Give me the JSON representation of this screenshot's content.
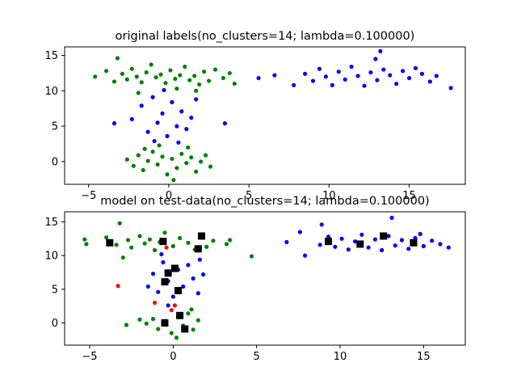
{
  "chart_data": [
    {
      "type": "scatter",
      "title": "original labels(no_clusters=14; lambda=0.100000)",
      "xlabel": "",
      "ylabel": "",
      "xlim": [
        -6.5,
        18.5
      ],
      "ylim": [
        -3.2,
        16.2
      ],
      "xticks": [
        -5,
        0,
        5,
        10,
        15
      ],
      "xtick_labels": [
        "−5",
        "0",
        "5",
        "10",
        "15"
      ],
      "yticks": [
        0,
        5,
        10,
        15
      ],
      "ytick_labels": [
        "0",
        "5",
        "10",
        "15"
      ],
      "grid": false,
      "legend": "none",
      "colors": {
        "green": "#008000",
        "blue": "#0000ff"
      },
      "series": [
        {
          "color": "green",
          "points": [
            [
              -4.6,
              12.0
            ],
            [
              -3.9,
              12.8
            ],
            [
              -3.4,
              11.3
            ],
            [
              -3.2,
              14.6
            ],
            [
              -2.9,
              12.4
            ],
            [
              -2.6,
              11.6
            ],
            [
              -2.3,
              13.1
            ],
            [
              -2.0,
              12.0
            ],
            [
              -1.7,
              11.2
            ],
            [
              -1.4,
              12.6
            ],
            [
              -1.1,
              13.7
            ],
            [
              -0.8,
              11.9
            ],
            [
              -0.5,
              12.3
            ],
            [
              -0.2,
              11.1
            ],
            [
              0.1,
              12.9
            ],
            [
              0.4,
              11.7
            ],
            [
              0.7,
              12.2
            ],
            [
              1.0,
              13.4
            ],
            [
              1.3,
              11.5
            ],
            [
              1.6,
              12.1
            ],
            [
              1.9,
              10.9
            ],
            [
              2.2,
              12.7
            ],
            [
              2.5,
              11.4
            ],
            [
              2.9,
              13.0
            ],
            [
              3.4,
              11.8
            ],
            [
              3.8,
              12.5
            ],
            [
              4.1,
              11.0
            ],
            [
              -1.9,
              9.7
            ],
            [
              0.5,
              10.3
            ],
            [
              1.7,
              10.0
            ],
            [
              -2.6,
              0.3
            ],
            [
              -2.2,
              -0.6
            ],
            [
              -1.9,
              0.9
            ],
            [
              -1.6,
              -1.2
            ],
            [
              -1.3,
              0.1
            ],
            [
              -1.0,
              1.4
            ],
            [
              -0.7,
              -0.4
            ],
            [
              -0.4,
              0.7
            ],
            [
              -0.1,
              -1.8
            ],
            [
              0.2,
              0.4
            ],
            [
              0.5,
              -0.9
            ],
            [
              0.8,
              1.1
            ],
            [
              1.1,
              -0.2
            ],
            [
              1.4,
              0.6
            ],
            [
              1.7,
              -1.4
            ],
            [
              2.0,
              0.0
            ],
            [
              2.3,
              0.9
            ],
            [
              2.6,
              -0.7
            ],
            [
              -0.6,
              2.3
            ],
            [
              0.3,
              -2.6
            ],
            [
              1.2,
              2.0
            ],
            [
              -1.5,
              1.8
            ]
          ]
        },
        {
          "color": "blue",
          "points": [
            [
              -1.7,
              7.9
            ],
            [
              -1.3,
              4.2
            ],
            [
              -1.0,
              9.1
            ],
            [
              -0.7,
              5.5
            ],
            [
              -0.4,
              6.8
            ],
            [
              -0.1,
              3.6
            ],
            [
              0.2,
              8.4
            ],
            [
              0.5,
              5.0
            ],
            [
              0.8,
              7.1
            ],
            [
              1.1,
              4.6
            ],
            [
              1.4,
              6.2
            ],
            [
              1.7,
              8.8
            ],
            [
              -0.9,
              2.9
            ],
            [
              0.6,
              2.7
            ],
            [
              -2.3,
              6.0
            ],
            [
              -3.4,
              5.4
            ],
            [
              3.5,
              5.4
            ],
            [
              -0.3,
              10.1
            ],
            [
              6.6,
              12.2
            ],
            [
              7.8,
              10.8
            ],
            [
              8.5,
              12.4
            ],
            [
              9.0,
              11.4
            ],
            [
              9.4,
              13.1
            ],
            [
              9.8,
              12.0
            ],
            [
              10.2,
              10.8
            ],
            [
              10.6,
              12.7
            ],
            [
              11.0,
              11.6
            ],
            [
              11.4,
              13.4
            ],
            [
              11.8,
              12.1
            ],
            [
              12.2,
              10.7
            ],
            [
              12.6,
              12.6
            ],
            [
              13.0,
              11.5
            ],
            [
              13.4,
              13.0
            ],
            [
              13.8,
              12.2
            ],
            [
              14.2,
              11.0
            ],
            [
              14.6,
              12.8
            ],
            [
              15.0,
              11.8
            ],
            [
              15.4,
              13.2
            ],
            [
              15.8,
              12.4
            ],
            [
              16.3,
              11.3
            ],
            [
              16.7,
              12.1
            ],
            [
              17.6,
              10.4
            ],
            [
              13.2,
              15.6
            ],
            [
              12.9,
              14.5
            ],
            [
              5.6,
              11.8
            ]
          ]
        }
      ]
    },
    {
      "type": "scatter",
      "title": "model on test-data(no_clusters=14; lambda=0.100000)",
      "xlabel": "",
      "ylabel": "",
      "xlim": [
        -6.5,
        17.5
      ],
      "ylim": [
        -3.3,
        16.5
      ],
      "xticks": [
        -5,
        0,
        5,
        10,
        15
      ],
      "xtick_labels": [
        "−5",
        "0",
        "5",
        "10",
        "15"
      ],
      "yticks": [
        0,
        5,
        10,
        15
      ],
      "ytick_labels": [
        "0",
        "5",
        "10",
        "15"
      ],
      "grid": false,
      "legend": "none",
      "colors": {
        "green": "#008000",
        "blue": "#0000ff",
        "red": "#ff0000",
        "black": "#000000"
      },
      "series": [
        {
          "color": "green",
          "points": [
            [
              -5.3,
              12.4
            ],
            [
              -5.2,
              11.7
            ],
            [
              -4.0,
              12.7
            ],
            [
              -3.4,
              11.6
            ],
            [
              -3.2,
              14.8
            ],
            [
              -2.7,
              12.3
            ],
            [
              -2.5,
              11.2
            ],
            [
              -2.0,
              12.9
            ],
            [
              -1.7,
              11.8
            ],
            [
              -1.4,
              12.4
            ],
            [
              -1.1,
              10.8
            ],
            [
              -0.8,
              12.0
            ],
            [
              -0.5,
              13.4
            ],
            [
              0.0,
              11.4
            ],
            [
              0.4,
              12.6
            ],
            [
              0.9,
              11.9
            ],
            [
              1.3,
              10.9
            ],
            [
              1.7,
              12.7
            ],
            [
              2.0,
              11.3
            ],
            [
              2.4,
              12.2
            ],
            [
              3.2,
              11.7
            ],
            [
              3.4,
              12.3
            ],
            [
              4.7,
              9.9
            ],
            [
              -3.0,
              9.7
            ],
            [
              -1.6,
              -0.1
            ],
            [
              -1.2,
              0.6
            ],
            [
              -0.9,
              -0.9
            ],
            [
              -0.5,
              0.3
            ],
            [
              -0.1,
              -1.5
            ],
            [
              0.3,
              0.9
            ],
            [
              0.6,
              -0.4
            ],
            [
              0.9,
              1.4
            ],
            [
              1.2,
              -1.0
            ],
            [
              1.5,
              0.4
            ],
            [
              -2.8,
              -0.3
            ],
            [
              -2.0,
              0.5
            ],
            [
              0.2,
              -2.2
            ],
            [
              1.1,
              2.0
            ]
          ]
        },
        {
          "color": "blue",
          "points": [
            [
              -1.2,
              7.3
            ],
            [
              -0.9,
              4.6
            ],
            [
              -0.6,
              9.0
            ],
            [
              -0.3,
              6.2
            ],
            [
              0.0,
              3.9
            ],
            [
              0.3,
              7.9
            ],
            [
              0.6,
              5.4
            ],
            [
              0.9,
              8.6
            ],
            [
              1.2,
              6.6
            ],
            [
              1.5,
              4.4
            ],
            [
              1.8,
              7.2
            ],
            [
              -1.5,
              5.4
            ],
            [
              -0.7,
              10.2
            ],
            [
              1.6,
              9.4
            ],
            [
              -0.3,
              2.6
            ],
            [
              6.8,
              12.0
            ],
            [
              7.9,
              10.0
            ],
            [
              8.8,
              11.6
            ],
            [
              8.9,
              14.6
            ],
            [
              9.3,
              12.8
            ],
            [
              9.7,
              11.3
            ],
            [
              10.1,
              12.5
            ],
            [
              10.5,
              10.9
            ],
            [
              10.9,
              12.1
            ],
            [
              11.3,
              13.1
            ],
            [
              11.7,
              11.2
            ],
            [
              12.1,
              12.4
            ],
            [
              12.5,
              10.8
            ],
            [
              12.9,
              12.9
            ],
            [
              13.1,
              15.6
            ],
            [
              13.3,
              11.5
            ],
            [
              13.7,
              12.3
            ],
            [
              14.1,
              11.0
            ],
            [
              14.5,
              12.6
            ],
            [
              15.0,
              11.4
            ],
            [
              15.5,
              12.2
            ],
            [
              16.0,
              11.7
            ],
            [
              16.5,
              11.2
            ],
            [
              7.6,
              13.5
            ],
            [
              14.8,
              13.2
            ]
          ]
        },
        {
          "color": "red",
          "points": [
            [
              -3.3,
              5.5
            ],
            [
              -1.1,
              3.0
            ],
            [
              -0.1,
              1.9
            ],
            [
              -0.4,
              11.2
            ],
            [
              0.1,
              2.6
            ]
          ]
        },
        {
          "color": "black",
          "marker": "square",
          "points": [
            [
              -3.8,
              11.9
            ],
            [
              -0.6,
              12.1
            ],
            [
              1.7,
              12.9
            ],
            [
              1.5,
              11.0
            ],
            [
              0.1,
              8.1
            ],
            [
              -0.3,
              7.4
            ],
            [
              -0.5,
              6.1
            ],
            [
              0.3,
              4.8
            ],
            [
              -0.5,
              0.0
            ],
            [
              0.4,
              1.1
            ],
            [
              0.7,
              -0.9
            ],
            [
              9.3,
              12.1
            ],
            [
              11.2,
              11.7
            ],
            [
              12.6,
              12.9
            ],
            [
              14.4,
              11.9
            ]
          ]
        }
      ]
    }
  ]
}
